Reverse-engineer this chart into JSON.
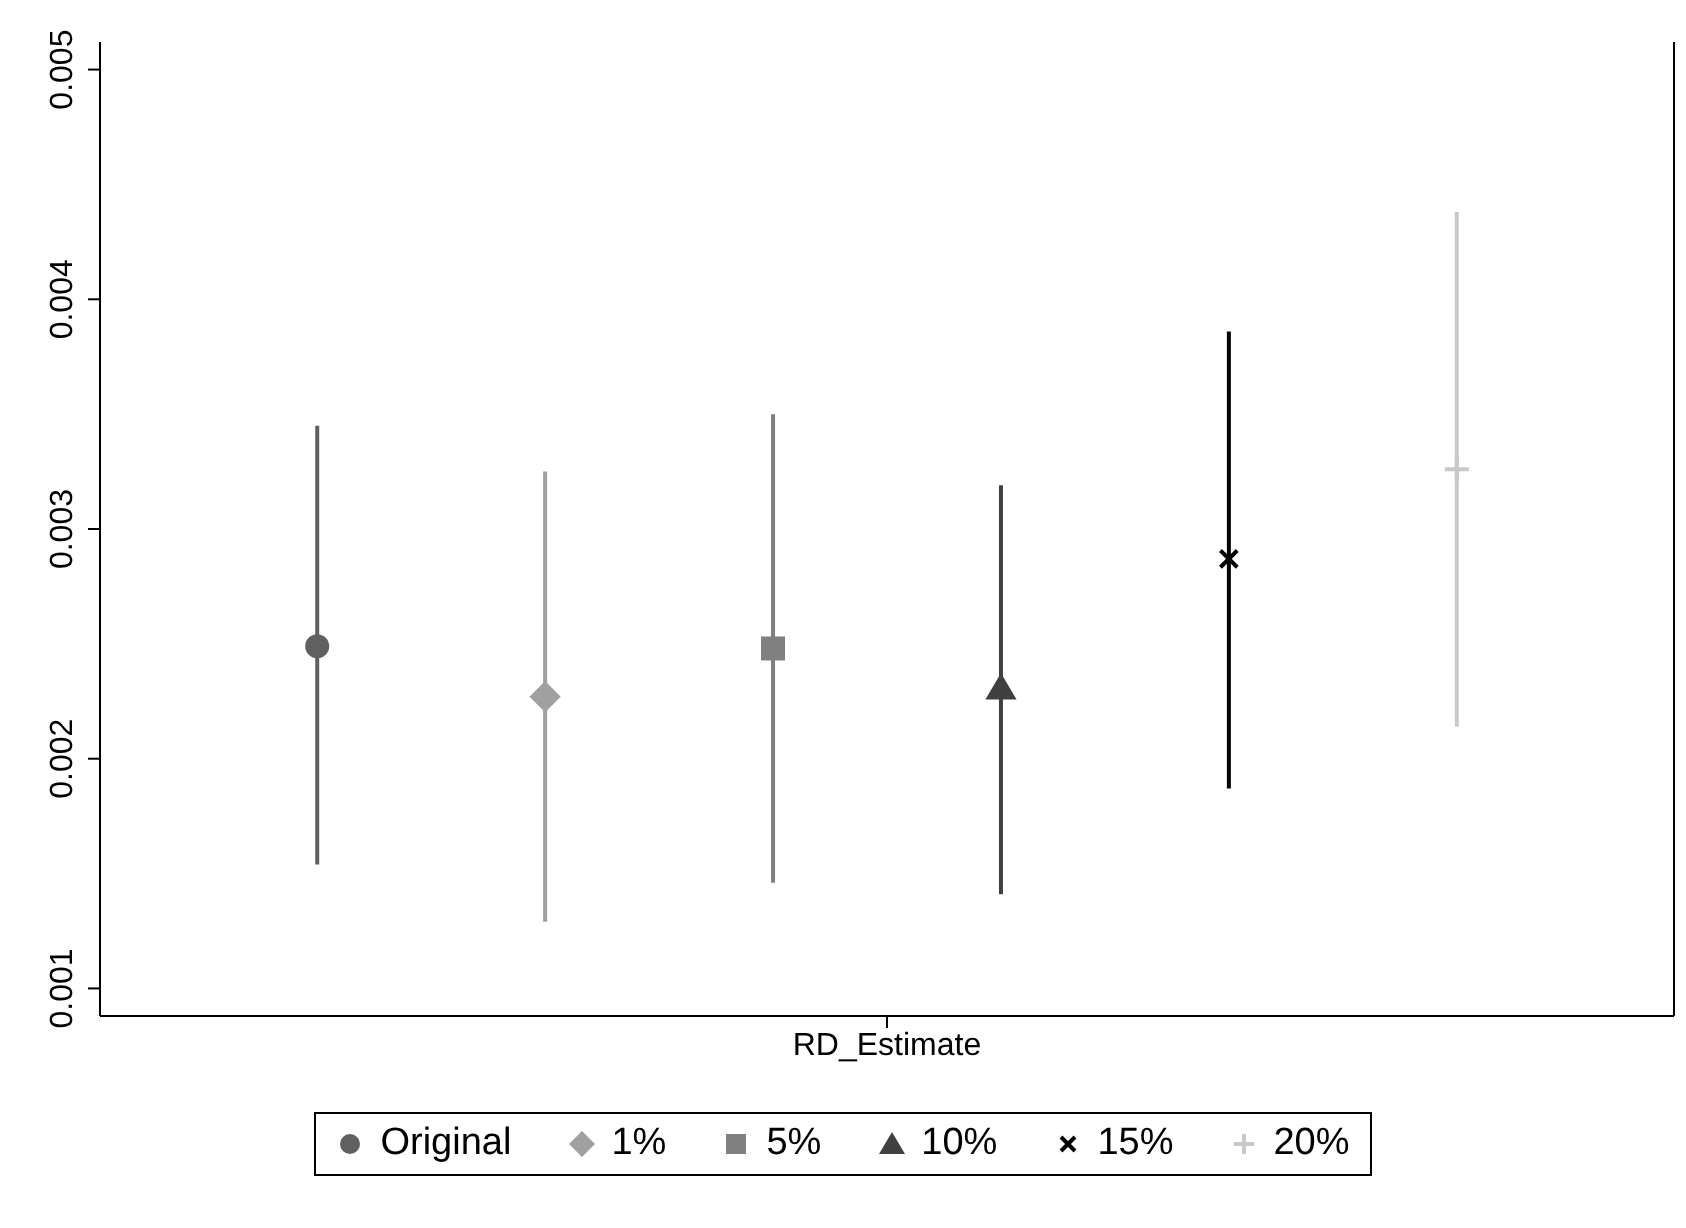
{
  "chart_data": {
    "type": "scatter",
    "categories": [
      "RD_Estimate"
    ],
    "ylim": [
      0.00088,
      0.00512
    ],
    "yticks": [
      0.001,
      0.002,
      0.003,
      0.004,
      0.005
    ],
    "legend": "bottom",
    "series": [
      {
        "name": "Original",
        "color": "#606060",
        "marker": "circle",
        "values": [
          0.00249
        ],
        "errors": [
          [
            0.00154,
            0.00345
          ]
        ]
      },
      {
        "name": "1%",
        "color": "#a0a0a0",
        "marker": "diamond",
        "values": [
          0.00227
        ],
        "errors": [
          [
            0.00129,
            0.00325
          ]
        ]
      },
      {
        "name": "5%",
        "color": "#808080",
        "marker": "square",
        "values": [
          0.00248
        ],
        "errors": [
          [
            0.00146,
            0.0035
          ]
        ]
      },
      {
        "name": "10%",
        "color": "#404040",
        "marker": "triangle",
        "values": [
          0.00231
        ],
        "errors": [
          [
            0.00141,
            0.00319
          ]
        ]
      },
      {
        "name": "15%",
        "color": "#000000",
        "marker": "x",
        "values": [
          0.00287
        ],
        "errors": [
          [
            0.00187,
            0.00386
          ]
        ]
      },
      {
        "name": "20%",
        "color": "#c8c8c8",
        "marker": "cross",
        "values": [
          0.00326
        ],
        "errors": [
          [
            0.00214,
            0.00438
          ]
        ]
      }
    ]
  }
}
